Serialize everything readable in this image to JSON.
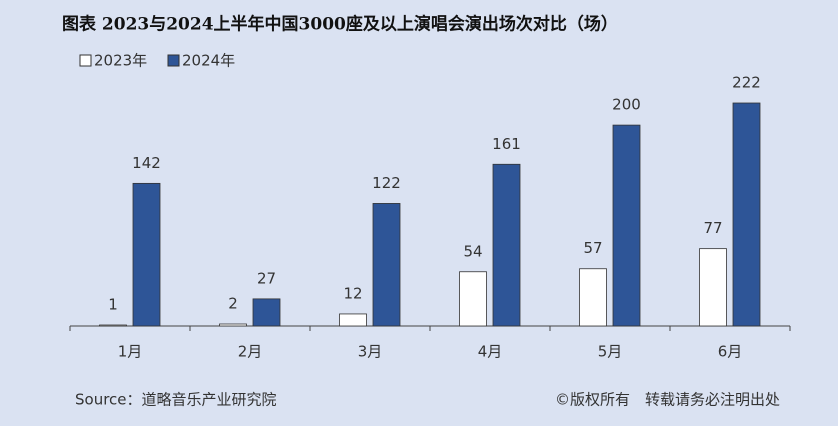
{
  "chart_data": {
    "type": "bar",
    "title": "图表 2023与2024上半年中国3000座及以上演唱会演出场次对比（场）",
    "categories": [
      "1月",
      "2月",
      "3月",
      "4月",
      "5月",
      "6月"
    ],
    "series": [
      {
        "name": "2023年",
        "color": "#ffffff",
        "values": [
          1,
          2,
          12,
          54,
          57,
          77
        ]
      },
      {
        "name": "2024年",
        "color": "#2e5597",
        "values": [
          142,
          27,
          122,
          161,
          200,
          222
        ]
      }
    ],
    "legend": "top-left",
    "source": "Source：道略音乐产业研究院",
    "copyright": "©版权所有　转载请务必注明出处"
  }
}
